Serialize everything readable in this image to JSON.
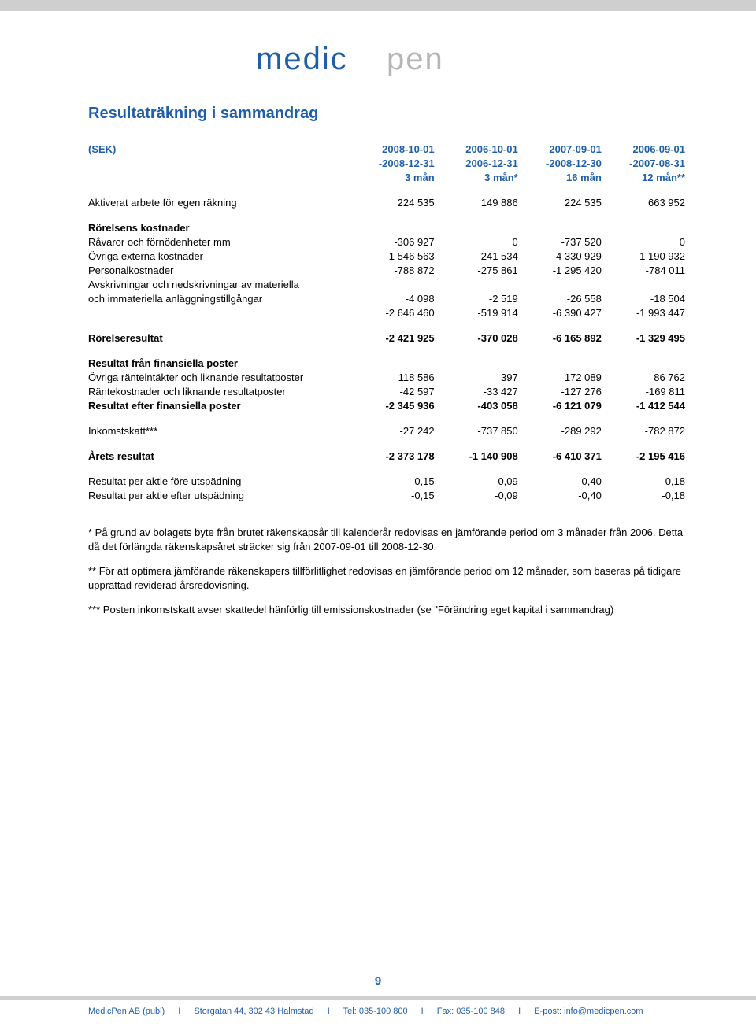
{
  "logo": {
    "text_left": "medic",
    "text_right": "pen",
    "color_left": "#1f5fa8",
    "color_right": "#b7b6b6",
    "font_size": 40,
    "letter_spacing": 2
  },
  "page_title": "Resultaträkning i sammandrag",
  "header": {
    "col0": "(SEK)",
    "row1": [
      "2008-10-01",
      "2006-10-01",
      "2007-09-01",
      "2006-09-01"
    ],
    "row2": [
      "-2008-12-31",
      "2006-12-31",
      "-2008-12-30",
      "-2007-08-31"
    ],
    "row3": [
      "3 mån",
      "3 mån*",
      "16 mån",
      "12 mån**"
    ]
  },
  "rows": [
    {
      "label": "Aktiverat arbete för egen räkning",
      "vals": [
        "224 535",
        "149 886",
        "224 535",
        "663 952"
      ],
      "spacer_after": true
    },
    {
      "label": "Rörelsens kostnader",
      "bold": true,
      "vals": [
        "",
        "",
        "",
        ""
      ]
    },
    {
      "label": "Råvaror och förnödenheter mm",
      "vals": [
        "-306 927",
        "0",
        "-737 520",
        "0"
      ]
    },
    {
      "label": "Övriga externa kostnader",
      "vals": [
        "-1 546 563",
        "-241 534",
        "-4 330 929",
        "-1 190 932"
      ]
    },
    {
      "label": "Personalkostnader",
      "vals": [
        "-788 872",
        "-275 861",
        "-1 295 420",
        "-784 011"
      ]
    },
    {
      "label": "Avskrivningar och nedskrivningar av materiella",
      "vals": [
        "",
        "",
        "",
        ""
      ]
    },
    {
      "label": "och immateriella anläggningstillgångar",
      "vals": [
        "-4 098",
        "-2 519",
        "-26 558",
        "-18 504"
      ]
    },
    {
      "label": "",
      "vals": [
        "-2 646 460",
        "-519 914",
        "-6 390 427",
        "-1 993 447"
      ],
      "spacer_after": true
    },
    {
      "label": "Rörelseresultat",
      "bold": true,
      "vals": [
        "-2 421 925",
        "-370 028",
        "-6 165 892",
        "-1 329 495"
      ],
      "spacer_after": true
    },
    {
      "label": "Resultat från finansiella poster",
      "bold": true,
      "vals": [
        "",
        "",
        "",
        ""
      ]
    },
    {
      "label": "Övriga ränteintäkter och liknande resultatposter",
      "vals": [
        "118 586",
        "397",
        "172 089",
        "86 762"
      ]
    },
    {
      "label": "Räntekostnader och liknande resultatposter",
      "vals": [
        "-42 597",
        "-33 427",
        "-127 276",
        "-169 811"
      ]
    },
    {
      "label": "Resultat efter finansiella poster",
      "bold": true,
      "vals": [
        "-2 345 936",
        "-403 058",
        "-6 121 079",
        "-1 412 544"
      ],
      "spacer_after": true
    },
    {
      "label": "Inkomstskatt***",
      "vals": [
        "-27 242",
        "-737 850",
        "-289 292",
        "-782 872"
      ],
      "spacer_after": true
    },
    {
      "label": "Årets resultat",
      "bold": true,
      "vals": [
        "-2 373 178",
        "-1 140 908",
        "-6 410 371",
        "-2 195 416"
      ],
      "spacer_after": true
    },
    {
      "label": "Resultat per aktie före utspädning",
      "vals": [
        "-0,15",
        "-0,09",
        "-0,40",
        "-0,18"
      ]
    },
    {
      "label": "Resultat per aktie efter utspädning",
      "vals": [
        "-0,15",
        "-0,09",
        "-0,40",
        "-0,18"
      ]
    }
  ],
  "notes": [
    "* På grund av bolagets byte från brutet räkenskapsår till kalenderår redovisas en jämförande period om 3 månader från 2006. Detta då det förlängda räkenskapsåret sträcker sig från 2007-09-01 till 2008-12-30.",
    "** För att optimera jämförande räkenskapers tillförlitlighet redovisas en jämförande period om 12 månader, som baseras på tidigare upprättad reviderad årsredovisning.",
    "*** Posten inkomstskatt avser skattedel hänförlig till emissionskostnader (se \"Förändring eget kapital i sammandrag)"
  ],
  "page_number": "9",
  "footer": {
    "company": "MedicPen AB (publ)",
    "address": "Storgatan 44, 302 43 Halmstad",
    "tel": "Tel: 035-100 800",
    "fax": "Fax: 035-100 848",
    "email": "E-post: info@medicpen.com",
    "sep": "I"
  },
  "colors": {
    "blue": "#1f5fa8",
    "grey": "#d0cfcf",
    "logo_grey": "#b7b6b6",
    "text": "#000000",
    "bg": "#ffffff"
  }
}
